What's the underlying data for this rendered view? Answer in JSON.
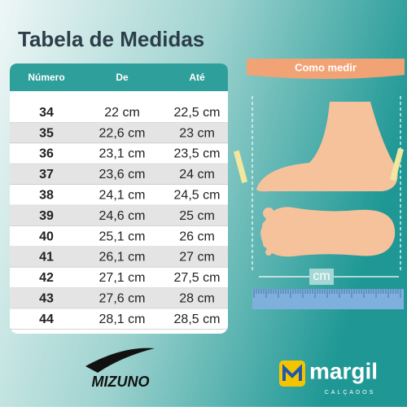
{
  "header": {
    "title": "Tabela de Medidas"
  },
  "table": {
    "columns": [
      "Número",
      "De",
      "Até"
    ],
    "rows": [
      [
        "34",
        "22 cm",
        "22,5 cm"
      ],
      [
        "35",
        "22,6 cm",
        "23 cm"
      ],
      [
        "36",
        "23,1 cm",
        "23,5 cm"
      ],
      [
        "37",
        "23,6 cm",
        "24 cm"
      ],
      [
        "38",
        "24,1 cm",
        "24,5 cm"
      ],
      [
        "39",
        "24,6 cm",
        "25 cm"
      ],
      [
        "40",
        "25,1 cm",
        "26 cm"
      ],
      [
        "41",
        "26,1 cm",
        "27 cm"
      ],
      [
        "42",
        "27,1 cm",
        "27,5 cm"
      ],
      [
        "43",
        "27,6 cm",
        "28 cm"
      ],
      [
        "44",
        "28,1 cm",
        "28,5 cm"
      ]
    ]
  },
  "guide": {
    "title": "Como medir",
    "unit": "cm"
  },
  "brands": {
    "left": "MIZUNO",
    "right": "margil",
    "right_tagline": "CALÇADOS"
  }
}
